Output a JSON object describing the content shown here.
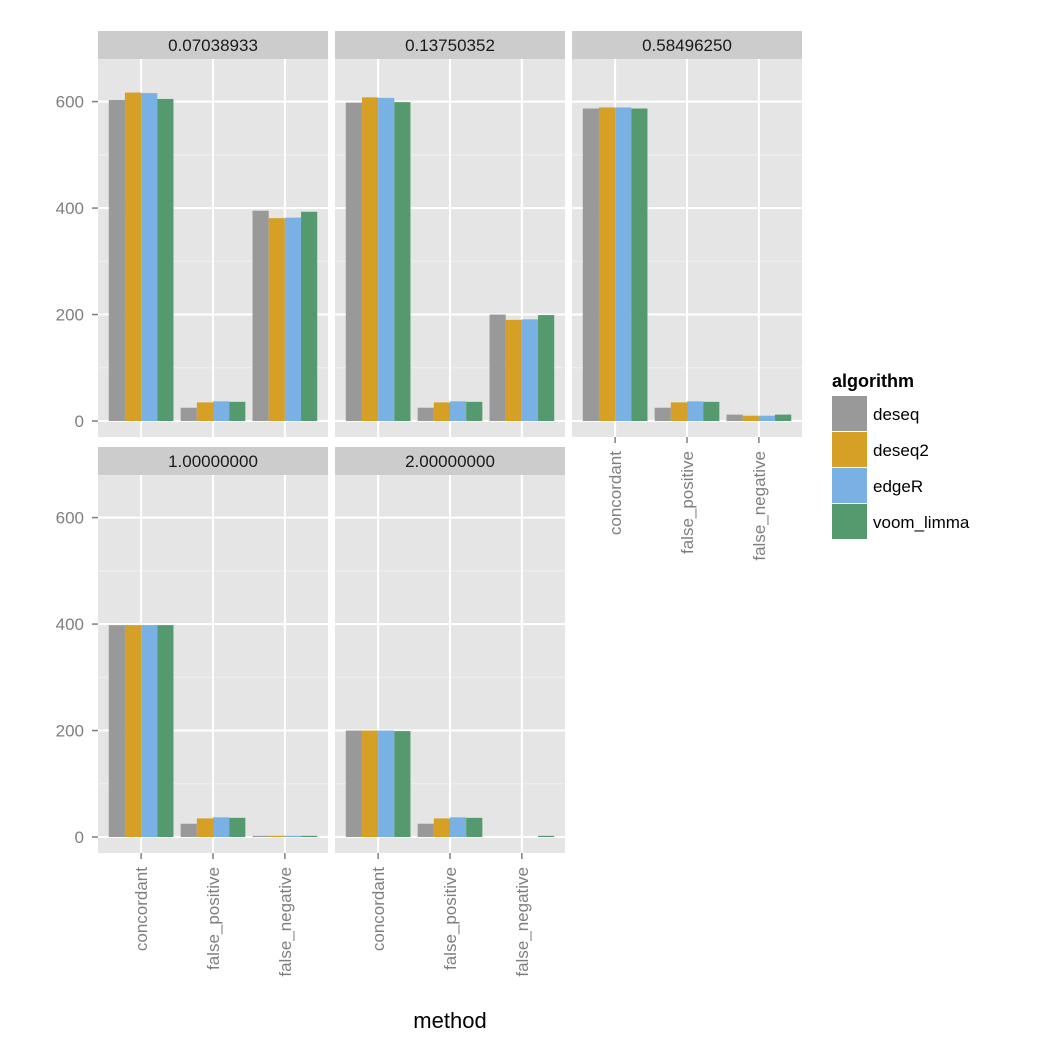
{
  "chart_data": {
    "type": "bar",
    "title": "",
    "xlabel": "method",
    "ylabel": "",
    "ylim": [
      -30,
      680
    ],
    "yticks": [
      0,
      200,
      400,
      600
    ],
    "categories": [
      "concordant",
      "false_positive",
      "false_negative"
    ],
    "legend": {
      "title": "algorithm",
      "position": "right",
      "entries": [
        {
          "name": "deseq",
          "color": "#999999"
        },
        {
          "name": "deseq2",
          "color": "#D69F26"
        },
        {
          "name": "edgeR",
          "color": "#7AB1E4"
        },
        {
          "name": "voom_limma",
          "color": "#55996E"
        }
      ]
    },
    "panels": [
      {
        "label": "0.07038933",
        "series": [
          {
            "name": "deseq",
            "values": [
              603,
              25,
              395
            ]
          },
          {
            "name": "deseq2",
            "values": [
              617,
              35,
              381
            ]
          },
          {
            "name": "edgeR",
            "values": [
              616,
              37,
              382
            ]
          },
          {
            "name": "voom_limma",
            "values": [
              605,
              36,
              393
            ]
          }
        ]
      },
      {
        "label": "0.13750352",
        "series": [
          {
            "name": "deseq",
            "values": [
              598,
              25,
              200
            ]
          },
          {
            "name": "deseq2",
            "values": [
              608,
              35,
              190
            ]
          },
          {
            "name": "edgeR",
            "values": [
              607,
              37,
              191
            ]
          },
          {
            "name": "voom_limma",
            "values": [
              599,
              36,
              199
            ]
          }
        ]
      },
      {
        "label": "0.58496250",
        "series": [
          {
            "name": "deseq",
            "values": [
              587,
              25,
              12
            ]
          },
          {
            "name": "deseq2",
            "values": [
              589,
              35,
              10
            ]
          },
          {
            "name": "edgeR",
            "values": [
              589,
              37,
              10
            ]
          },
          {
            "name": "voom_limma",
            "values": [
              587,
              36,
              12
            ]
          }
        ]
      },
      {
        "label": "1.00000000",
        "series": [
          {
            "name": "deseq",
            "values": [
              398,
              25,
              2
            ]
          },
          {
            "name": "deseq2",
            "values": [
              398,
              35,
              2
            ]
          },
          {
            "name": "edgeR",
            "values": [
              398,
              37,
              2
            ]
          },
          {
            "name": "voom_limma",
            "values": [
              398,
              36,
              2
            ]
          }
        ]
      },
      {
        "label": "2.00000000",
        "series": [
          {
            "name": "deseq",
            "values": [
              200,
              25,
              0
            ]
          },
          {
            "name": "deseq2",
            "values": [
              200,
              35,
              0
            ]
          },
          {
            "name": "edgeR",
            "values": [
              200,
              37,
              0
            ]
          },
          {
            "name": "voom_limma",
            "values": [
              199,
              36,
              1
            ]
          }
        ]
      }
    ]
  }
}
